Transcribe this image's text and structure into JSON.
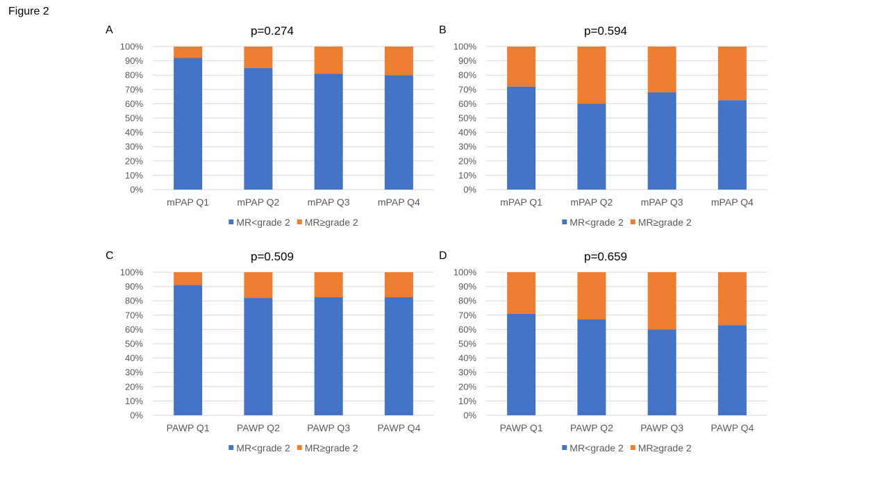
{
  "figure_title": "Figure 2",
  "colors": {
    "lower": "#4472C4",
    "upper": "#ED7D31",
    "grid": "#D9D9D9",
    "axis_text": "#595959"
  },
  "chart_data": [
    {
      "panel": "A",
      "type": "bar",
      "stacked": true,
      "title": "p=0.274",
      "categories": [
        "mPAP Q1",
        "mPAP Q2",
        "mPAP Q3",
        "mPAP Q4"
      ],
      "series": [
        {
          "name": "MR<grade 2",
          "values": [
            92,
            85,
            81,
            80
          ]
        },
        {
          "name": "MR≥grade 2",
          "values": [
            8,
            15,
            19,
            20
          ]
        }
      ],
      "ylim": [
        0,
        100
      ],
      "yticks": [
        "0%",
        "10%",
        "20%",
        "30%",
        "40%",
        "50%",
        "60%",
        "70%",
        "80%",
        "90%",
        "100%"
      ],
      "grid": true,
      "legend": "bottom"
    },
    {
      "panel": "B",
      "type": "bar",
      "stacked": true,
      "title": "p=0.594",
      "categories": [
        "mPAP Q1",
        "mPAP Q2",
        "mPAP Q3",
        "mPAP Q4"
      ],
      "series": [
        {
          "name": "MR<grade 2",
          "values": [
            72,
            60,
            68,
            62.5
          ]
        },
        {
          "name": "MR≥grade 2",
          "values": [
            28,
            40,
            32,
            37.5
          ]
        }
      ],
      "ylim": [
        0,
        100
      ],
      "yticks": [
        "0%",
        "10%",
        "20%",
        "30%",
        "40%",
        "50%",
        "60%",
        "70%",
        "80%",
        "90%",
        "100%"
      ],
      "grid": true,
      "legend": "bottom"
    },
    {
      "panel": "C",
      "type": "bar",
      "stacked": true,
      "title": "p=0.509",
      "categories": [
        "PAWP Q1",
        "PAWP Q2",
        "PAWP Q3",
        "PAWP Q4"
      ],
      "series": [
        {
          "name": "MR<grade 2",
          "values": [
            91,
            82,
            82.5,
            82.5
          ]
        },
        {
          "name": "MR≥grade 2",
          "values": [
            9,
            18,
            17.5,
            17.5
          ]
        }
      ],
      "ylim": [
        0,
        100
      ],
      "yticks": [
        "0%",
        "10%",
        "20%",
        "30%",
        "40%",
        "50%",
        "60%",
        "70%",
        "80%",
        "90%",
        "100%"
      ],
      "grid": true,
      "legend": "bottom"
    },
    {
      "panel": "D",
      "type": "bar",
      "stacked": true,
      "title": "p=0.659",
      "categories": [
        "PAWP Q1",
        "PAWP Q2",
        "PAWP Q3",
        "PAWP Q4"
      ],
      "series": [
        {
          "name": "MR<grade 2",
          "values": [
            71,
            67,
            60,
            63
          ]
        },
        {
          "name": "MR≥grade 2",
          "values": [
            29,
            33,
            40,
            37
          ]
        }
      ],
      "ylim": [
        0,
        100
      ],
      "yticks": [
        "0%",
        "10%",
        "20%",
        "30%",
        "40%",
        "50%",
        "60%",
        "70%",
        "80%",
        "90%",
        "100%"
      ],
      "grid": true,
      "legend": "bottom"
    }
  ]
}
